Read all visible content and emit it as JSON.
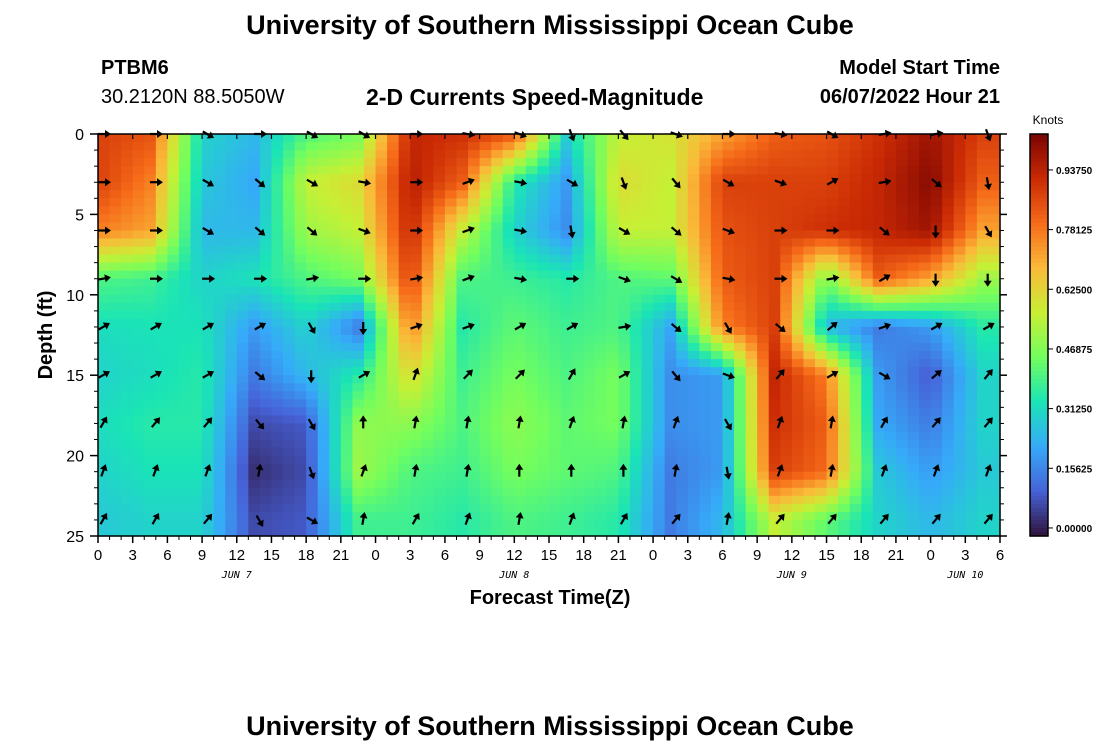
{
  "page": {
    "title": "University of Southern Mississippi Ocean Cube",
    "station_id": "PTBM6",
    "station_coords": "30.2120N  88.5050W",
    "subtitle": "2-D Currents Speed-Magnitude",
    "model_start_label": "Model Start Time",
    "model_start_value": "06/07/2022 Hour 21",
    "footer_title": "University of Southern Mississippi Ocean Cube"
  },
  "colors": {
    "scale": [
      "#30123b",
      "#4662d7",
      "#36aaf9",
      "#1ae4b6",
      "#72fe5e",
      "#c8ef34",
      "#faba39",
      "#f66b19",
      "#ca2a04",
      "#7a0403"
    ]
  },
  "chart_data": {
    "type": "heatmap",
    "title": "2-D Currents Speed-Magnitude",
    "xlabel": "Forecast Time(Z)",
    "ylabel": "Depth (ft)",
    "colorbar_label": "Knots",
    "x_ticks": [
      "0",
      "3",
      "6",
      "9",
      "12",
      "15",
      "18",
      "21",
      "0",
      "3",
      "6",
      "9",
      "12",
      "15",
      "18",
      "21",
      "0",
      "3",
      "6",
      "9",
      "12",
      "15",
      "18",
      "21",
      "0",
      "3",
      "6"
    ],
    "day_labels": [
      {
        "label": "JUN 7",
        "tick_index": 4
      },
      {
        "label": "JUN 8",
        "tick_index": 12
      },
      {
        "label": "JUN 9",
        "tick_index": 20
      },
      {
        "label": "JUN 10",
        "tick_index": 25
      }
    ],
    "y_ticks": [
      "0",
      "5",
      "10",
      "15",
      "20",
      "25"
    ],
    "ylim": [
      0,
      25
    ],
    "xlim_hours": [
      0,
      78
    ],
    "colorbar_ticks": [
      "0.93750",
      "0.78125",
      "0.62500",
      "0.46875",
      "0.31250",
      "0.15625",
      "0.00000"
    ],
    "clim": [
      0,
      1.0
    ],
    "row_depths_ft": [
      0,
      3,
      6,
      9,
      12,
      15,
      18,
      21,
      24
    ],
    "col_hours": [
      0,
      4.5,
      9,
      13.5,
      18,
      22.5,
      27,
      31.5,
      36,
      40.5,
      45,
      49.5,
      54,
      58.5,
      63,
      67.5,
      72,
      76.5
    ],
    "speed_grid": [
      [
        0.85,
        0.82,
        0.3,
        0.25,
        0.4,
        0.45,
        0.9,
        0.88,
        0.82,
        0.3,
        0.55,
        0.58,
        0.7,
        0.8,
        0.82,
        0.88,
        0.95,
        0.85
      ],
      [
        0.85,
        0.75,
        0.28,
        0.22,
        0.55,
        0.6,
        0.92,
        0.8,
        0.35,
        0.2,
        0.6,
        0.55,
        0.85,
        0.85,
        0.85,
        0.9,
        0.98,
        0.8
      ],
      [
        0.75,
        0.7,
        0.25,
        0.25,
        0.5,
        0.55,
        0.9,
        0.55,
        0.3,
        0.18,
        0.55,
        0.55,
        0.82,
        0.85,
        0.88,
        0.9,
        0.95,
        0.7
      ],
      [
        0.4,
        0.38,
        0.3,
        0.33,
        0.4,
        0.45,
        0.85,
        0.4,
        0.38,
        0.35,
        0.4,
        0.42,
        0.8,
        0.85,
        0.45,
        0.8,
        0.7,
        0.5
      ],
      [
        0.32,
        0.33,
        0.33,
        0.2,
        0.3,
        0.15,
        0.75,
        0.35,
        0.42,
        0.38,
        0.4,
        0.22,
        0.75,
        0.85,
        0.25,
        0.15,
        0.2,
        0.35
      ],
      [
        0.3,
        0.32,
        0.35,
        0.15,
        0.25,
        0.35,
        0.6,
        0.38,
        0.45,
        0.4,
        0.45,
        0.18,
        0.2,
        0.9,
        0.75,
        0.2,
        0.1,
        0.3
      ],
      [
        0.32,
        0.35,
        0.35,
        0.08,
        0.1,
        0.48,
        0.48,
        0.4,
        0.48,
        0.42,
        0.45,
        0.18,
        0.2,
        0.88,
        0.8,
        0.22,
        0.15,
        0.3
      ],
      [
        0.3,
        0.33,
        0.33,
        0.04,
        0.08,
        0.5,
        0.4,
        0.38,
        0.45,
        0.42,
        0.4,
        0.15,
        0.2,
        0.85,
        0.78,
        0.28,
        0.2,
        0.28
      ],
      [
        0.28,
        0.3,
        0.3,
        0.08,
        0.1,
        0.38,
        0.38,
        0.35,
        0.4,
        0.38,
        0.35,
        0.15,
        0.25,
        0.55,
        0.42,
        0.3,
        0.25,
        0.3
      ]
    ],
    "arrow_grid_note": "arrow directions in compass degrees (0 = up/north, 90 = right/east)",
    "arrow_cols_hours": [
      0,
      4.5,
      9,
      13.5,
      18,
      22.5,
      27,
      31.5,
      36,
      40.5,
      45,
      49.5,
      54,
      58.5,
      63,
      67.5,
      72,
      76.5
    ],
    "arrow_dirs": [
      [
        90,
        90,
        120,
        90,
        120,
        120,
        90,
        100,
        110,
        160,
        140,
        110,
        90,
        100,
        120,
        80,
        80,
        160
      ],
      [
        90,
        90,
        120,
        130,
        120,
        100,
        90,
        70,
        100,
        120,
        160,
        140,
        120,
        110,
        60,
        80,
        130,
        170
      ],
      [
        90,
        90,
        120,
        130,
        130,
        110,
        90,
        70,
        100,
        170,
        120,
        130,
        110,
        90,
        90,
        130,
        180,
        150
      ],
      [
        80,
        90,
        90,
        90,
        80,
        90,
        80,
        70,
        100,
        90,
        110,
        120,
        100,
        90,
        80,
        60,
        180,
        180
      ],
      [
        60,
        60,
        60,
        60,
        150,
        180,
        70,
        70,
        60,
        60,
        80,
        130,
        150,
        130,
        50,
        70,
        60,
        60
      ],
      [
        60,
        60,
        60,
        130,
        180,
        60,
        20,
        45,
        45,
        30,
        60,
        140,
        110,
        40,
        60,
        120,
        50,
        40
      ],
      [
        30,
        40,
        40,
        140,
        150,
        0,
        10,
        10,
        10,
        20,
        10,
        20,
        150,
        20,
        10,
        30,
        40,
        40
      ],
      [
        20,
        20,
        20,
        10,
        160,
        20,
        10,
        10,
        0,
        0,
        0,
        10,
        170,
        20,
        10,
        20,
        20,
        20
      ],
      [
        30,
        30,
        40,
        150,
        120,
        10,
        30,
        20,
        10,
        20,
        30,
        40,
        10,
        40,
        40,
        40,
        40,
        40
      ]
    ]
  }
}
